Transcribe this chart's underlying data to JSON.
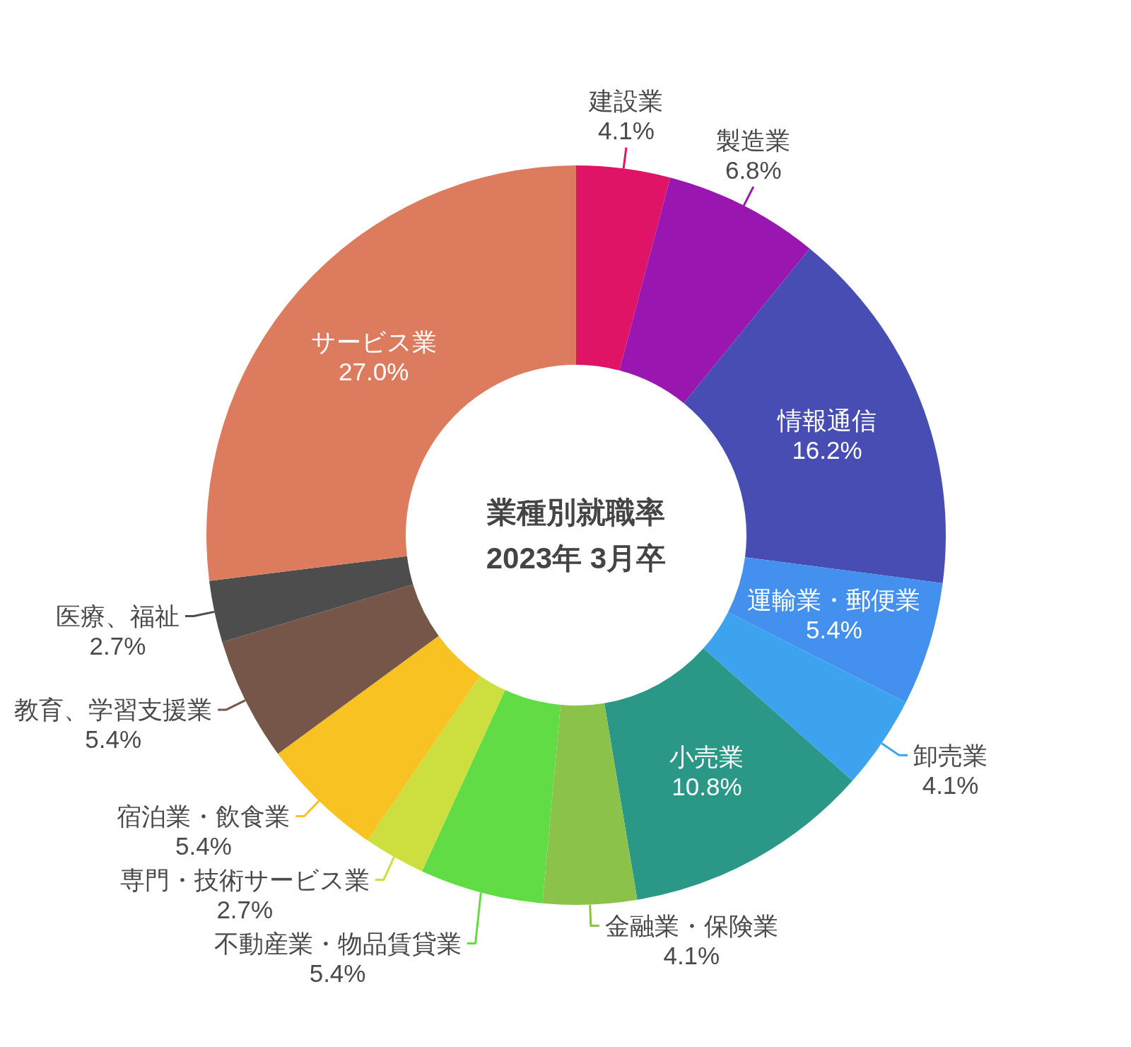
{
  "chart_data": {
    "type": "donut",
    "title": "業種別就職率",
    "subtitle": "2023年 3月卒",
    "categories": [
      "建設業",
      "製造業",
      "情報通信",
      "運輸業・郵便業",
      "卸売業",
      "小売業",
      "金融業・保険業",
      "不動産業・物品賃貸業",
      "専門・技術サービス業",
      "宿泊業・飲食業",
      "教育、学習支援業",
      "医療、福祉",
      "サービス業"
    ],
    "values": [
      4.1,
      6.8,
      16.2,
      5.4,
      4.1,
      10.8,
      4.1,
      5.4,
      2.7,
      5.4,
      5.4,
      2.7,
      27.0
    ],
    "value_labels": [
      "4.1%",
      "6.8%",
      "16.2%",
      "5.4%",
      "4.1%",
      "10.8%",
      "4.1%",
      "5.4%",
      "2.7%",
      "5.4%",
      "5.4%",
      "2.7%",
      "27.0%"
    ],
    "colors": [
      "#e01466",
      "#9a16b0",
      "#474db2",
      "#4390ef",
      "#3ea3ef",
      "#2a9787",
      "#8bc34a",
      "#61dc44",
      "#cddf3f",
      "#f8c222",
      "#765649",
      "#4d4d4d",
      "#dd7b5f"
    ]
  }
}
